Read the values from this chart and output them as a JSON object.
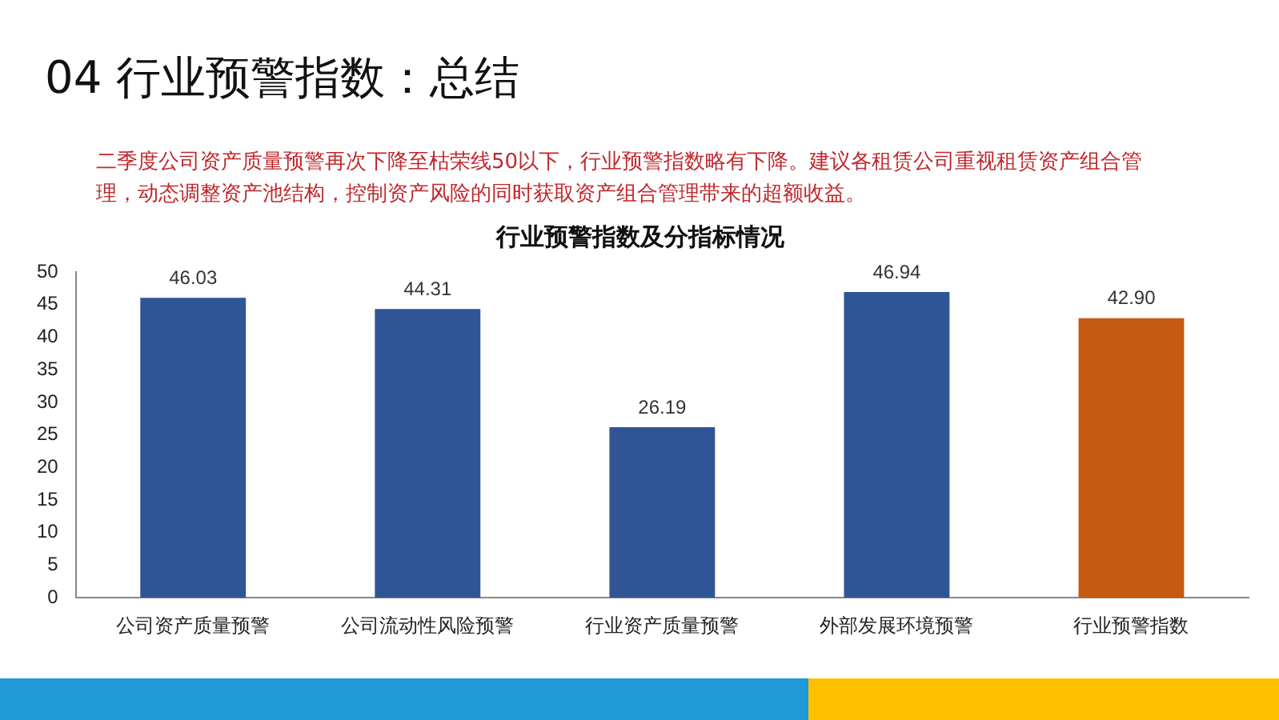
{
  "chart_data": {
    "type": "bar",
    "title": "行业预警指数及分指标情况",
    "categories": [
      "公司资产质量预警",
      "公司流动性风险预警",
      "行业资产质量预警",
      "外部发展环境预警",
      "行业预警指数"
    ],
    "values": [
      46.03,
      44.31,
      26.19,
      46.94,
      42.9
    ],
    "value_labels": [
      "46.03",
      "44.31",
      "26.19",
      "46.94",
      "42.90"
    ],
    "colors": [
      "#2f5597",
      "#2f5597",
      "#2f5597",
      "#2f5597",
      "#c55a11"
    ],
    "ylim": [
      0,
      50
    ],
    "yticks": [
      0,
      5,
      10,
      15,
      20,
      25,
      30,
      35,
      40,
      45,
      50
    ],
    "grid": false,
    "legend": false,
    "annotations": [
      "04 行业预警指数：总结",
      "二季度公司资产质量预警再次下降至枯荣线50以下，行业预警指数略有下降。建议各租赁公司重视租赁资产组合管理，动态调整资产池结构，控制资产风险的同时获取资产组合管理带来的超额收益。"
    ]
  }
}
